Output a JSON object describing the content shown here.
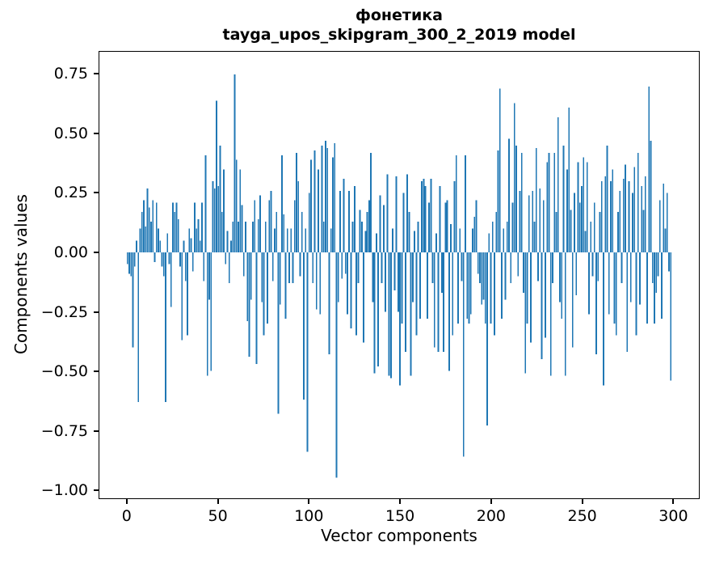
{
  "title": {
    "line1": "фонетика",
    "line2": "tayga_upos_skipgram_300_2_2019 model"
  },
  "chart_data": {
    "type": "bar",
    "title": "фонетика",
    "subtitle": "tayga_upos_skipgram_300_2_2019 model",
    "xlabel": "Vector components",
    "ylabel": "Components values",
    "xlim": [
      -15.45,
      314.45
    ],
    "ylim": [
      -1.0363,
      0.8458
    ],
    "grid": false,
    "legend": null,
    "bar_color": "#1f77b4",
    "bar_width_units": 0.8,
    "xticks": [
      {
        "value": 0,
        "label": "0"
      },
      {
        "value": 50,
        "label": "50"
      },
      {
        "value": 100,
        "label": "100"
      },
      {
        "value": 150,
        "label": "150"
      },
      {
        "value": 200,
        "label": "200"
      },
      {
        "value": 250,
        "label": "250"
      },
      {
        "value": 300,
        "label": "300"
      }
    ],
    "yticks": [
      {
        "value": 0.75,
        "label": "0.75"
      },
      {
        "value": 0.5,
        "label": "0.50"
      },
      {
        "value": 0.25,
        "label": "0.25"
      },
      {
        "value": 0.0,
        "label": "0.00"
      },
      {
        "value": -0.25,
        "label": "−0.25"
      },
      {
        "value": -0.5,
        "label": "−0.50"
      },
      {
        "value": -0.75,
        "label": "−0.75"
      },
      {
        "value": -1.0,
        "label": "−1.00"
      }
    ],
    "values": [
      -0.05,
      -0.09,
      -0.1,
      -0.4,
      -0.06,
      0.05,
      -0.63,
      0.1,
      0.17,
      0.22,
      0.11,
      0.27,
      0.19,
      0.13,
      0.22,
      -0.04,
      0.21,
      0.1,
      0.05,
      -0.06,
      -0.1,
      -0.63,
      0.08,
      -0.05,
      -0.23,
      0.21,
      0.17,
      0.21,
      0.14,
      -0.06,
      -0.37,
      0.05,
      -0.12,
      -0.35,
      0.1,
      0.06,
      -0.08,
      0.21,
      0.1,
      0.14,
      0.05,
      0.21,
      -0.12,
      0.41,
      -0.52,
      -0.2,
      -0.5,
      0.3,
      0.27,
      0.64,
      0.28,
      0.45,
      0.17,
      0.35,
      -0.05,
      0.09,
      -0.13,
      0.05,
      0.13,
      0.75,
      0.39,
      0.13,
      0.35,
      0.2,
      -0.1,
      0.13,
      -0.29,
      -0.44,
      -0.2,
      0.13,
      0.22,
      -0.47,
      0.14,
      0.24,
      -0.21,
      -0.35,
      0.13,
      -0.3,
      0.22,
      0.26,
      -0.12,
      0.1,
      0.17,
      -0.68,
      -0.22,
      0.41,
      0.16,
      -0.28,
      0.1,
      -0.13,
      0.1,
      -0.13,
      0.22,
      0.42,
      0.3,
      -0.1,
      0.17,
      -0.62,
      0.1,
      -0.84,
      0.25,
      0.39,
      -0.13,
      0.43,
      -0.24,
      0.35,
      -0.26,
      0.45,
      0.13,
      0.47,
      0.44,
      -0.43,
      0.1,
      0.4,
      0.46,
      -0.95,
      -0.21,
      0.26,
      -0.11,
      0.31,
      -0.09,
      -0.26,
      0.26,
      -0.32,
      0.13,
      0.28,
      -0.35,
      -0.13,
      0.18,
      0.13,
      -0.38,
      0.09,
      0.17,
      0.22,
      0.42,
      -0.21,
      -0.51,
      0.08,
      -0.48,
      0.24,
      -0.13,
      0.2,
      -0.25,
      0.33,
      -0.52,
      -0.53,
      0.1,
      -0.16,
      0.32,
      -0.25,
      -0.56,
      -0.3,
      0.25,
      -0.42,
      0.33,
      0.17,
      -0.52,
      -0.21,
      0.09,
      -0.35,
      0.13,
      -0.28,
      0.3,
      0.31,
      0.28,
      -0.28,
      0.21,
      0.31,
      -0.13,
      -0.4,
      0.08,
      -0.42,
      0.28,
      -0.17,
      -0.42,
      0.21,
      0.22,
      -0.5,
      0.12,
      -0.35,
      0.3,
      0.41,
      -0.3,
      0.1,
      -0.12,
      -0.86,
      0.41,
      -0.28,
      -0.3,
      -0.26,
      0.1,
      0.15,
      0.22,
      -0.09,
      -0.13,
      -0.22,
      -0.2,
      -0.3,
      -0.73,
      0.08,
      -0.3,
      0.13,
      -0.35,
      0.17,
      0.43,
      0.69,
      -0.28,
      0.1,
      -0.2,
      0.13,
      0.48,
      -0.13,
      0.21,
      0.63,
      0.45,
      -0.1,
      0.26,
      0.42,
      -0.17,
      -0.51,
      -0.3,
      0.24,
      -0.38,
      0.26,
      0.13,
      0.44,
      -0.12,
      0.27,
      -0.45,
      0.22,
      -0.36,
      0.38,
      0.42,
      -0.52,
      -0.13,
      0.42,
      0.17,
      0.57,
      -0.21,
      -0.28,
      0.45,
      -0.52,
      0.35,
      0.61,
      0.18,
      -0.4,
      0.25,
      -0.18,
      0.38,
      0.21,
      0.28,
      0.4,
      0.09,
      0.38,
      -0.26,
      0.13,
      -0.1,
      0.21,
      -0.43,
      -0.12,
      0.17,
      0.3,
      -0.56,
      0.32,
      0.45,
      -0.26,
      0.3,
      0.35,
      -0.3,
      -0.35,
      0.17,
      0.26,
      -0.13,
      0.31,
      0.37,
      -0.42,
      0.3,
      -0.21,
      0.25,
      0.36,
      -0.35,
      0.42,
      -0.22,
      0.28,
      0.18,
      0.32,
      -0.3,
      0.7,
      0.47,
      -0.13,
      -0.3,
      -0.17,
      -0.1,
      0.22,
      -0.28,
      0.29,
      0.1,
      0.25,
      -0.08,
      -0.54
    ]
  }
}
